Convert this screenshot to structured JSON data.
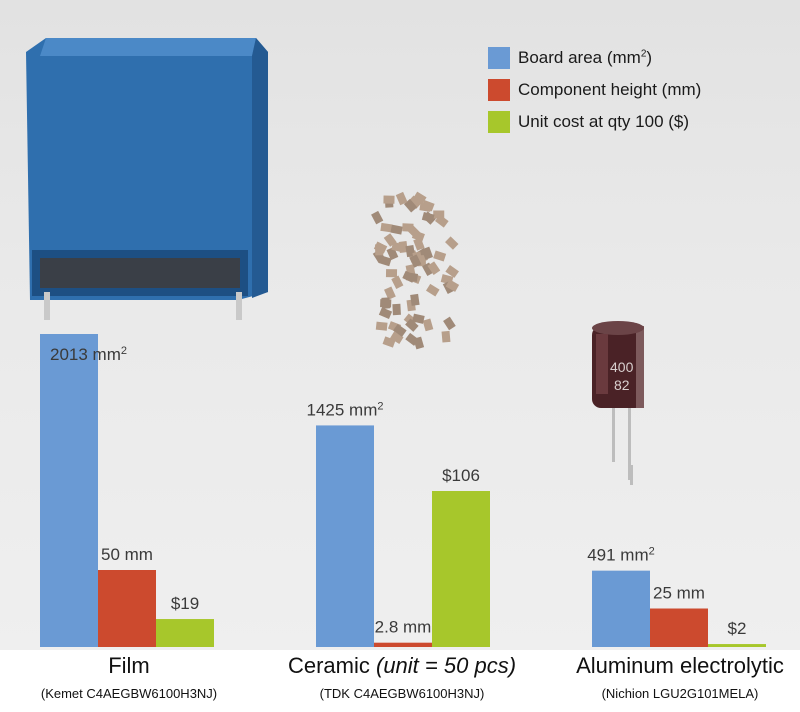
{
  "legend": {
    "items": [
      {
        "label": "Board area (mm",
        "sup": "2",
        "tail": ")",
        "color": "#6a9ad4"
      },
      {
        "label": "Component height (mm)",
        "sup": "",
        "tail": "",
        "color": "#cc4a2e"
      },
      {
        "label": "Unit cost at qty 100 ($)",
        "sup": "",
        "tail": "",
        "color": "#a7c72b"
      }
    ]
  },
  "groups": [
    {
      "title": "Film",
      "title_suffix": "",
      "subtitle": "(Kemet C4AEGBW6100H3NJ)"
    },
    {
      "title": "Ceramic ",
      "title_suffix": "(unit = 50 pcs)",
      "subtitle": "(TDK C4AEGBW6100H3NJ)"
    },
    {
      "title": "Aluminum electrolytic",
      "title_suffix": "",
      "subtitle": "(Nichion LGU2G101MELA)"
    }
  ],
  "chart_data": {
    "type": "bar",
    "categories": [
      "Film",
      "Ceramic (unit = 50 pcs)",
      "Aluminum electrolytic"
    ],
    "series": [
      {
        "name": "Board area (mm2)",
        "values": [
          2013,
          1425,
          491
        ],
        "labels": [
          "2013 mm",
          "1425 mm",
          "491 mm"
        ],
        "label_sup": "2",
        "color": "#6a9ad4"
      },
      {
        "name": "Component height (mm)",
        "values": [
          50,
          2.8,
          25
        ],
        "labels": [
          "50 mm",
          "2.8 mm",
          "25 mm"
        ],
        "label_sup": "",
        "color": "#cc4a2e"
      },
      {
        "name": "Unit cost at qty 100 ($)",
        "values": [
          19,
          106,
          2
        ],
        "labels": [
          "$19",
          "$106",
          "$2"
        ],
        "label_sup": "",
        "color": "#a7c72b"
      }
    ],
    "title": "",
    "xlabel": "",
    "ylabel": "",
    "grid": false,
    "legend": "top-right"
  }
}
